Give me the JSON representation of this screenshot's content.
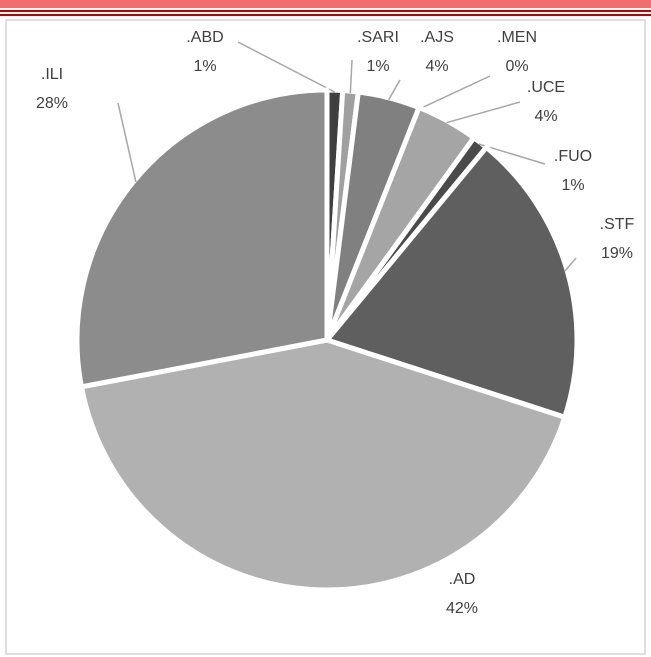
{
  "chart_data": {
    "type": "pie",
    "categories": [
      ".ABD",
      ".SARI",
      ".AJS",
      ".MEN",
      ".UCE",
      ".FUO",
      ".STF",
      ".AD",
      ".ILI"
    ],
    "values": [
      1,
      1,
      4,
      0,
      4,
      1,
      19,
      42,
      28
    ],
    "value_labels": [
      "1%",
      "1%",
      "4%",
      "0%",
      "4%",
      "1%",
      "19%",
      "42%",
      "28%"
    ],
    "colors": [
      "#3f3f3f",
      "#a0a0a0",
      "#808080",
      "#6a6a6a",
      "#a5a5a5",
      "#4a4a4a",
      "#5f5f5f",
      "#b1b1b1",
      "#8c8c8c"
    ]
  }
}
